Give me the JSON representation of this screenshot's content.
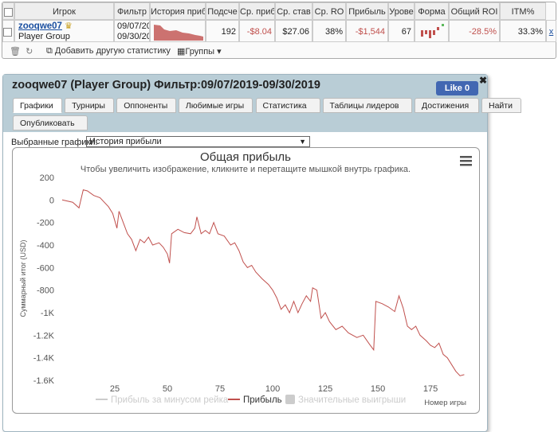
{
  "table": {
    "headers": [
      "Игрок",
      "Фильтр",
      "История приб",
      "Подсче",
      "Ср. приб",
      "Ср. став",
      "Ср. RO",
      "Прибыль",
      "Урове",
      "Форма",
      "Общий ROI",
      "ITM%"
    ],
    "row": {
      "player": "zooqwe07",
      "group": "Player Group",
      "filter_from": "09/07/20",
      "filter_to": "09/30/20",
      "count": "192",
      "avg_profit": "-$8.04",
      "avg_stake": "$27.06",
      "avg_roi": "38%",
      "profit": "-$1,544",
      "level": "67",
      "total_roi": "-28.5%",
      "itm": "33.3%",
      "remove": "x"
    }
  },
  "toolbar": {
    "add_stats": "Добавить другую статистику",
    "groups": "Группы"
  },
  "dialog": {
    "title": "zooqwe07 (Player Group) Фильтр:09/07/2019-09/30/2019",
    "like": "Like 0",
    "tabs": [
      "Графики",
      "Турниры",
      "Оппоненты",
      "Любимые игры",
      "Статистика",
      "Таблицы лидеров",
      "Достижения",
      "Найти",
      "Опубликовать"
    ],
    "selector_label": "Выбранные графики:",
    "selected": "История прибыли"
  },
  "chart_data": {
    "type": "line",
    "title": "Общая прибыль",
    "subtitle": "Чтобы увеличить изображение, кликните и перетащите мышкой внутрь графика.",
    "ylabel": "Суммарный итог (USD)",
    "xlabel": "Номер игры",
    "x": [
      0,
      5,
      8,
      10,
      12,
      15,
      18,
      20,
      22,
      24,
      26,
      27,
      29,
      31,
      33,
      35,
      37,
      39,
      41,
      43,
      46,
      48,
      50,
      51,
      52,
      55,
      58,
      61,
      63,
      64,
      66,
      68,
      70,
      72,
      74,
      77,
      80,
      82,
      84,
      86,
      88,
      90,
      92,
      95,
      98,
      100,
      102,
      104,
      106,
      108,
      110,
      112,
      114,
      116,
      118,
      119,
      121,
      123,
      125,
      127,
      130,
      133,
      136,
      140,
      143,
      146,
      148,
      149,
      152,
      155,
      158,
      160,
      162,
      164,
      166,
      168,
      170,
      173,
      175,
      177,
      179,
      181,
      183,
      185,
      187,
      189,
      191
    ],
    "series": [
      {
        "name": "Прибыль",
        "color": "#c0504d",
        "values": [
          0,
          -20,
          -70,
          90,
          80,
          40,
          20,
          -20,
          -60,
          -120,
          -250,
          -100,
          -200,
          -300,
          -350,
          -450,
          -350,
          -380,
          -330,
          -400,
          -380,
          -420,
          -480,
          -560,
          -300,
          -260,
          -290,
          -300,
          -250,
          -150,
          -300,
          -270,
          -300,
          -200,
          -300,
          -320,
          -400,
          -380,
          -450,
          -550,
          -600,
          -580,
          -640,
          -700,
          -750,
          -800,
          -870,
          -970,
          -930,
          -1000,
          -900,
          -1000,
          -920,
          -850,
          -900,
          -780,
          -800,
          -1050,
          -1000,
          -1080,
          -1150,
          -1120,
          -1180,
          -1220,
          -1200,
          -1280,
          -1330,
          -900,
          -920,
          -950,
          -990,
          -850,
          -960,
          -1120,
          -1150,
          -1120,
          -1200,
          -1250,
          -1290,
          -1310,
          -1270,
          -1370,
          -1400,
          -1460,
          -1520,
          -1560,
          -1550
        ]
      }
    ],
    "legend_hidden": [
      "Прибыль за минусом рейка",
      "Значительные выигрыши"
    ],
    "xlim": [
      0,
      192
    ],
    "xticks": [
      25,
      50,
      75,
      100,
      125,
      150,
      175
    ],
    "ylim": [
      -1600,
      200
    ],
    "yticks": [
      200,
      0,
      -200,
      -400,
      -600,
      -800,
      {
        "value": -1000,
        "label": "-1K"
      },
      {
        "value": -1200,
        "label": "-1.2K"
      },
      {
        "value": -1400,
        "label": "-1.4K"
      },
      {
        "value": -1600,
        "label": "-1.6K"
      }
    ],
    "grid": false
  }
}
